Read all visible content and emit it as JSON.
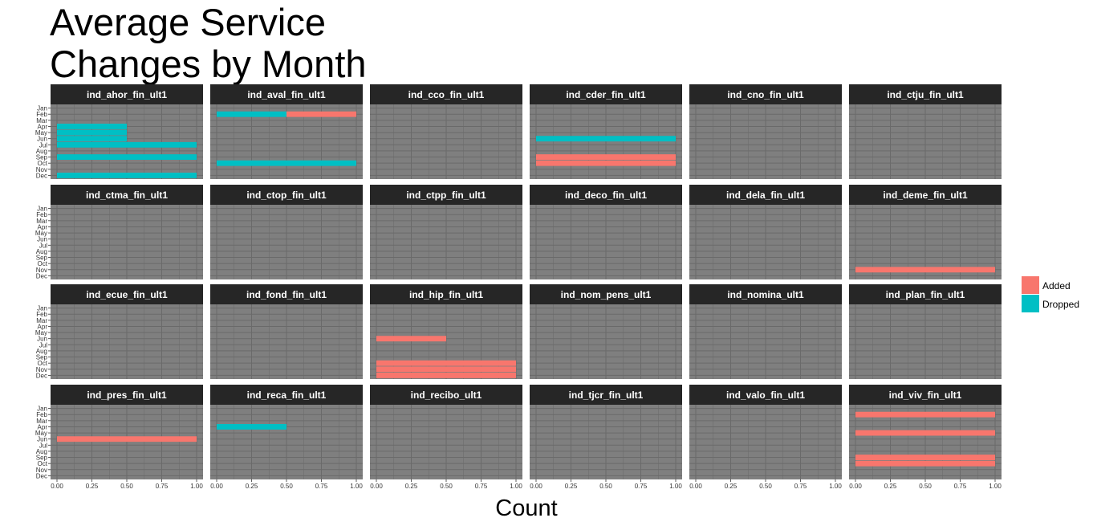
{
  "chart_data": {
    "type": "bar",
    "orientation": "horizontal",
    "title": "Average Service\nChanges by Month",
    "xlabel": "Count",
    "ylabel": "",
    "xlim": [
      0,
      1
    ],
    "x_ticks": [
      "0.00",
      "0.25",
      "0.50",
      "0.75",
      "1.00"
    ],
    "months": [
      "Jan",
      "Feb",
      "Mar",
      "Apr",
      "May",
      "Jun",
      "Jul",
      "Aug",
      "Sep",
      "Oct",
      "Nov",
      "Dec"
    ],
    "grid": true,
    "legend_position": "right",
    "series": [
      {
        "name": "Added",
        "color": "#F8766D"
      },
      {
        "name": "Dropped",
        "color": "#00BFC4"
      }
    ],
    "facets": [
      {
        "name": "ind_ahor_fin_ult1",
        "bars": [
          {
            "month": "Apr",
            "series": "Dropped",
            "value": 0.5
          },
          {
            "month": "May",
            "series": "Dropped",
            "value": 0.5
          },
          {
            "month": "Jun",
            "series": "Dropped",
            "value": 0.5
          },
          {
            "month": "Jul",
            "series": "Dropped",
            "value": 1.0
          },
          {
            "month": "Sep",
            "series": "Dropped",
            "value": 1.0
          },
          {
            "month": "Nov",
            "series": "Dropped",
            "value": 0.0
          },
          {
            "month": "Dec",
            "series": "Dropped",
            "value": 1.0
          }
        ]
      },
      {
        "name": "ind_aval_fin_ult1",
        "bars": [
          {
            "month": "Feb",
            "series": "Dropped",
            "value": 0.5
          },
          {
            "month": "Feb",
            "series": "Added",
            "value": 0.5
          },
          {
            "month": "Oct",
            "series": "Dropped",
            "value": 1.0
          }
        ]
      },
      {
        "name": "ind_cco_fin_ult1",
        "bars": []
      },
      {
        "name": "ind_cder_fin_ult1",
        "bars": [
          {
            "month": "Jun",
            "series": "Dropped",
            "value": 1.0
          },
          {
            "month": "Sep",
            "series": "Added",
            "value": 1.0
          },
          {
            "month": "Oct",
            "series": "Added",
            "value": 1.0
          }
        ]
      },
      {
        "name": "ind_cno_fin_ult1",
        "bars": []
      },
      {
        "name": "ind_ctju_fin_ult1",
        "bars": []
      },
      {
        "name": "ind_ctma_fin_ult1",
        "bars": []
      },
      {
        "name": "ind_ctop_fin_ult1",
        "bars": []
      },
      {
        "name": "ind_ctpp_fin_ult1",
        "bars": []
      },
      {
        "name": "ind_deco_fin_ult1",
        "bars": []
      },
      {
        "name": "ind_dela_fin_ult1",
        "bars": []
      },
      {
        "name": "ind_deme_fin_ult1",
        "bars": [
          {
            "month": "Nov",
            "series": "Added",
            "value": 1.0
          }
        ]
      },
      {
        "name": "ind_ecue_fin_ult1",
        "bars": []
      },
      {
        "name": "ind_fond_fin_ult1",
        "bars": []
      },
      {
        "name": "ind_hip_fin_ult1",
        "bars": [
          {
            "month": "Jun",
            "series": "Added",
            "value": 0.5
          },
          {
            "month": "Oct",
            "series": "Added",
            "value": 1.0
          },
          {
            "month": "Nov",
            "series": "Added",
            "value": 1.0
          },
          {
            "month": "Dec",
            "series": "Added",
            "value": 1.0
          }
        ]
      },
      {
        "name": "ind_nom_pens_ult1",
        "bars": []
      },
      {
        "name": "ind_nomina_ult1",
        "bars": []
      },
      {
        "name": "ind_plan_fin_ult1",
        "bars": []
      },
      {
        "name": "ind_pres_fin_ult1",
        "bars": [
          {
            "month": "Jun",
            "series": "Added",
            "value": 1.0
          }
        ]
      },
      {
        "name": "ind_reca_fin_ult1",
        "bars": [
          {
            "month": "Apr",
            "series": "Dropped",
            "value": 0.5
          }
        ]
      },
      {
        "name": "ind_recibo_ult1",
        "bars": []
      },
      {
        "name": "ind_tjcr_fin_ult1",
        "bars": []
      },
      {
        "name": "ind_valo_fin_ult1",
        "bars": []
      },
      {
        "name": "ind_viv_fin_ult1",
        "bars": [
          {
            "month": "Feb",
            "series": "Added",
            "value": 1.0
          },
          {
            "month": "May",
            "series": "Added",
            "value": 1.0
          },
          {
            "month": "Sep",
            "series": "Added",
            "value": 1.0
          },
          {
            "month": "Oct",
            "series": "Added",
            "value": 1.0
          }
        ]
      }
    ]
  }
}
